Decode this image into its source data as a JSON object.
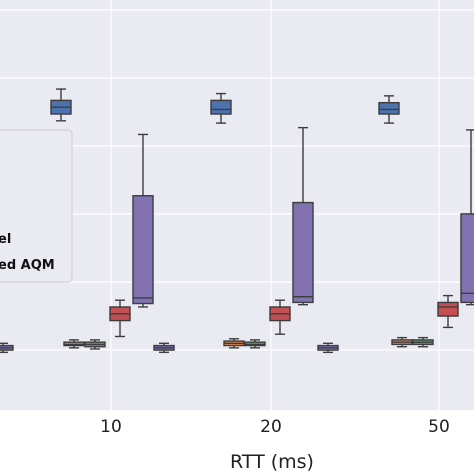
{
  "chart_data": {
    "type": "box",
    "xlabel": "RTT (ms)",
    "ylabel": "",
    "categories": [
      "10",
      "20",
      "50"
    ],
    "grid": true,
    "legend_position": "left",
    "legend_entries_visible_text": [
      "el",
      "ed AQM"
    ],
    "series": [
      {
        "color": "#4c72b0",
        "boxes": [
          {
            "category": "10",
            "whisker_low": 10.1,
            "q1": 10.4,
            "median": 10.7,
            "q3": 11.0,
            "whisker_high": 11.5
          },
          {
            "category": "20",
            "whisker_low": 10.0,
            "q1": 10.4,
            "median": 10.6,
            "q3": 11.0,
            "whisker_high": 11.3
          },
          {
            "category": "50",
            "whisker_low": 10.0,
            "q1": 10.4,
            "median": 10.6,
            "q3": 10.9,
            "whisker_high": 11.2
          }
        ]
      },
      {
        "color": "#dd8452",
        "boxes": [
          {
            "category": "10",
            "whisker_low": 0.1,
            "q1": 0.2,
            "median": 0.25,
            "q3": 0.35,
            "whisker_high": 0.45
          },
          {
            "category": "20",
            "whisker_low": 0.1,
            "q1": 0.2,
            "median": 0.3,
            "q3": 0.4,
            "whisker_high": 0.5
          },
          {
            "category": "50",
            "whisker_low": 0.15,
            "q1": 0.25,
            "median": 0.35,
            "q3": 0.45,
            "whisker_high": 0.55
          }
        ]
      },
      {
        "color": "#55a868",
        "boxes": [
          {
            "category": "10",
            "whisker_low": 0.05,
            "q1": 0.15,
            "median": 0.25,
            "q3": 0.35,
            "whisker_high": 0.45
          },
          {
            "category": "20",
            "whisker_low": 0.1,
            "q1": 0.2,
            "median": 0.25,
            "q3": 0.35,
            "whisker_high": 0.45
          },
          {
            "category": "50",
            "whisker_low": 0.15,
            "q1": 0.25,
            "median": 0.35,
            "q3": 0.45,
            "whisker_high": 0.55
          }
        ]
      },
      {
        "color": "#c44e52",
        "boxes": [
          {
            "category": "10",
            "whisker_low": 0.6,
            "q1": 1.3,
            "median": 1.6,
            "q3": 1.9,
            "whisker_high": 2.2
          },
          {
            "category": "20",
            "whisker_low": 0.7,
            "q1": 1.3,
            "median": 1.6,
            "q3": 1.9,
            "whisker_high": 2.2
          },
          {
            "category": "50",
            "whisker_low": 1.0,
            "q1": 1.5,
            "median": 1.9,
            "q3": 2.1,
            "whisker_high": 2.4
          }
        ]
      },
      {
        "color": "#8172b2",
        "boxes": [
          {
            "category": "10",
            "whisker_low": 1.9,
            "q1": 2.05,
            "median": 2.3,
            "q3": 6.8,
            "whisker_high": 9.5
          },
          {
            "category": "20",
            "whisker_low": 2.0,
            "q1": 2.1,
            "median": 2.35,
            "q3": 6.5,
            "whisker_high": 9.8
          },
          {
            "category": "50",
            "whisker_low": 2.0,
            "q1": 2.1,
            "median": 2.5,
            "q3": 6.0,
            "whisker_high": 9.7
          }
        ]
      }
    ],
    "extra_boxes": [
      {
        "position": "left-edge",
        "color": "#8172b2",
        "whisker_low": -0.1,
        "q1": 0.0,
        "median": 0.1,
        "q3": 0.2,
        "whisker_high": 0.3
      },
      {
        "position": "10-20 gap",
        "color": "#8172b2",
        "whisker_low": -0.1,
        "q1": 0.0,
        "median": 0.1,
        "q3": 0.2,
        "whisker_high": 0.3
      },
      {
        "position": "20-50 gap",
        "color": "#8172b2",
        "whisker_low": -0.1,
        "q1": 0.0,
        "median": 0.1,
        "q3": 0.2,
        "whisker_high": 0.3
      }
    ]
  }
}
